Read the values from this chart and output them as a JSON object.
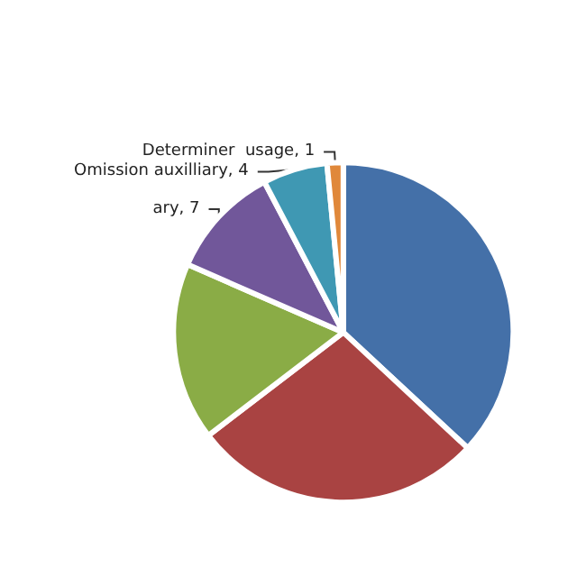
{
  "chart_data": {
    "type": "pie",
    "categories": [
      null,
      null,
      null,
      "ary",
      "Omission auxilliary",
      "Determiner  usage"
    ],
    "values": [
      24,
      18,
      11,
      7,
      4,
      1
    ],
    "value_labels": [
      null,
      null,
      null,
      "7",
      "4",
      "1"
    ],
    "colors": [
      "#4470a8",
      "#a94342",
      "#8aac46",
      "#71579a",
      "#3f98b3",
      "#e0883a"
    ]
  }
}
